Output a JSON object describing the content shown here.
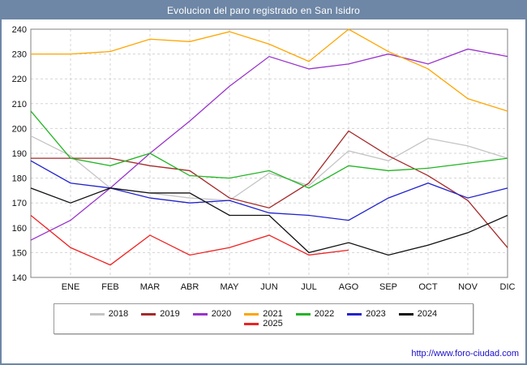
{
  "window": {
    "title": "Evolucion del paro registrado en San Isidro"
  },
  "footer": {
    "url": "http://www.foro-ciudad.com"
  },
  "colors": {
    "frame": "#6e87a6",
    "grid": "#d4d4d4",
    "plot_border": "#808080",
    "url_blue": "#1a0dcc"
  },
  "chart_data": {
    "type": "line",
    "title": "Evolucion del paro registrado en San Isidro",
    "categories": [
      "ENE",
      "FEB",
      "MAR",
      "ABR",
      "MAY",
      "JUN",
      "JUL",
      "AGO",
      "SEP",
      "OCT",
      "NOV",
      "DIC"
    ],
    "ylim": [
      140,
      240
    ],
    "ytick_step": 10,
    "grid": true,
    "legend_position": "bottom",
    "series": [
      {
        "name": "2018",
        "color": "#c4c4c4",
        "start": 197,
        "values": [
          189,
          176,
          174,
          172,
          171,
          182,
          177,
          191,
          187,
          196,
          193,
          188
        ]
      },
      {
        "name": "2019",
        "color": "#a52a2a",
        "start": 188,
        "values": [
          188,
          188,
          185,
          183,
          172,
          168,
          178,
          199,
          189,
          181,
          171,
          152
        ]
      },
      {
        "name": "2020",
        "color": "#9933cc",
        "start": 155,
        "values": [
          163,
          176,
          190,
          203,
          217,
          229,
          224,
          226,
          230,
          226,
          232,
          229
        ]
      },
      {
        "name": "2021",
        "color": "#ffa500",
        "start": 230,
        "values": [
          230,
          231,
          236,
          235,
          239,
          234,
          227,
          240,
          231,
          224,
          212,
          207
        ]
      },
      {
        "name": "2022",
        "color": "#22b522",
        "start": 207,
        "values": [
          188,
          185,
          190,
          181,
          180,
          183,
          176,
          185,
          183,
          184,
          186,
          188
        ]
      },
      {
        "name": "2023",
        "color": "#2222cc",
        "start": 187,
        "values": [
          178,
          176,
          172,
          170,
          171,
          166,
          165,
          163,
          172,
          178,
          172,
          176
        ]
      },
      {
        "name": "2024",
        "color": "#111111",
        "start": 176,
        "values": [
          170,
          176,
          174,
          174,
          165,
          165,
          150,
          154,
          149,
          153,
          158,
          165
        ]
      },
      {
        "name": "2025",
        "color": "#ee2222",
        "start": 165,
        "values": [
          152,
          145,
          157,
          149,
          152,
          157,
          149,
          151
        ]
      }
    ]
  }
}
